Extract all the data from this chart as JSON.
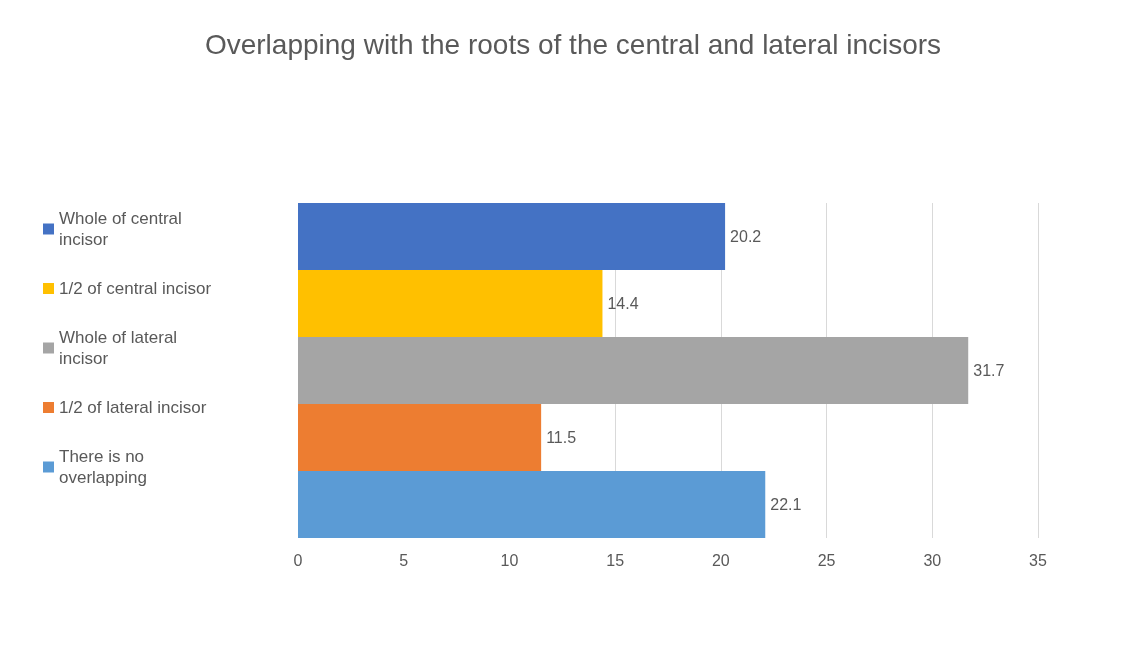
{
  "chart_data": {
    "type": "bar",
    "title": "Overlapping with the roots of the central and lateral incisors",
    "orientation": "horizontal",
    "categories": [
      null
    ],
    "series": [
      {
        "name": "Whole of central incisor",
        "color": "#4472c4",
        "values": [
          20.2
        ]
      },
      {
        "name": "1/2 of central incisor",
        "color": "#ffc000",
        "values": [
          14.4
        ]
      },
      {
        "name": "Whole of lateral incisor",
        "color": "#a5a5a5",
        "values": [
          31.7
        ]
      },
      {
        "name": "1/2 of lateral incisor",
        "color": "#ed7d31",
        "values": [
          11.5
        ]
      },
      {
        "name": "There is no overlapping",
        "color": "#5b9bd5",
        "values": [
          22.1
        ]
      }
    ],
    "xlim": [
      0,
      35
    ],
    "xticks": [
      0,
      5,
      10,
      15,
      20,
      25,
      30,
      35
    ],
    "grid": "x",
    "legend": "left",
    "data_labels": true
  }
}
